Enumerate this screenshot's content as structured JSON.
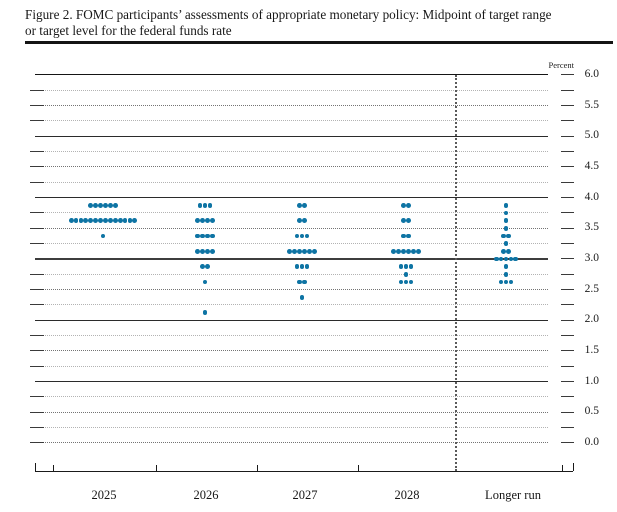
{
  "header": {
    "title_line1": "Figure 2. FOMC participants’ assessments of appropriate monetary policy: Midpoint of target range",
    "title_line2": "or target level for the federal funds rate"
  },
  "chart_data": {
    "type": "scatter",
    "subtype": "fomc-dot-plot",
    "unit_label": "Percent",
    "ylim": [
      0.0,
      6.0
    ],
    "y_tick_labels": [
      "6.0",
      "5.5",
      "5.0",
      "4.5",
      "4.0",
      "3.5",
      "3.0",
      "2.5",
      "2.0",
      "1.5",
      "1.0",
      "0.5",
      "0.0"
    ],
    "grid": "solid lines at integer percents (3.0 emphasized), dotted lines at quarter-point increments",
    "categories": [
      "2025",
      "2026",
      "2027",
      "2028",
      "Longer run"
    ],
    "series": [
      {
        "category": "2025",
        "dots": [
          {
            "rate": 3.875,
            "count": 6
          },
          {
            "rate": 3.625,
            "count": 14
          },
          {
            "rate": 3.375,
            "count": 1
          }
        ]
      },
      {
        "category": "2026",
        "dots": [
          {
            "rate": 3.875,
            "count": 3
          },
          {
            "rate": 3.625,
            "count": 4
          },
          {
            "rate": 3.375,
            "count": 4
          },
          {
            "rate": 3.125,
            "count": 4
          },
          {
            "rate": 2.875,
            "count": 2
          },
          {
            "rate": 2.625,
            "count": 1
          },
          {
            "rate": 2.125,
            "count": 1
          }
        ]
      },
      {
        "category": "2027",
        "dots": [
          {
            "rate": 3.875,
            "count": 2
          },
          {
            "rate": 3.625,
            "count": 2
          },
          {
            "rate": 3.375,
            "count": 3
          },
          {
            "rate": 3.125,
            "count": 6
          },
          {
            "rate": 2.875,
            "count": 3
          },
          {
            "rate": 2.625,
            "count": 2
          },
          {
            "rate": 2.375,
            "count": 1
          }
        ]
      },
      {
        "category": "2028",
        "dots": [
          {
            "rate": 3.875,
            "count": 2
          },
          {
            "rate": 3.625,
            "count": 2
          },
          {
            "rate": 3.375,
            "count": 2
          },
          {
            "rate": 3.125,
            "count": 6
          },
          {
            "rate": 2.875,
            "count": 3
          },
          {
            "rate": 2.75,
            "count": 1
          },
          {
            "rate": 2.625,
            "count": 3
          }
        ]
      },
      {
        "category": "Longer run",
        "dots": [
          {
            "rate": 3.875,
            "count": 1
          },
          {
            "rate": 3.75,
            "count": 1
          },
          {
            "rate": 3.625,
            "count": 1
          },
          {
            "rate": 3.5,
            "count": 1
          },
          {
            "rate": 3.375,
            "count": 2
          },
          {
            "rate": 3.25,
            "count": 1
          },
          {
            "rate": 3.125,
            "count": 2
          },
          {
            "rate": 3.0,
            "count": 5
          },
          {
            "rate": 2.875,
            "count": 1
          },
          {
            "rate": 2.75,
            "count": 1
          },
          {
            "rate": 2.625,
            "count": 3
          }
        ]
      }
    ],
    "colors": {
      "dot": "#0e74a4"
    }
  }
}
